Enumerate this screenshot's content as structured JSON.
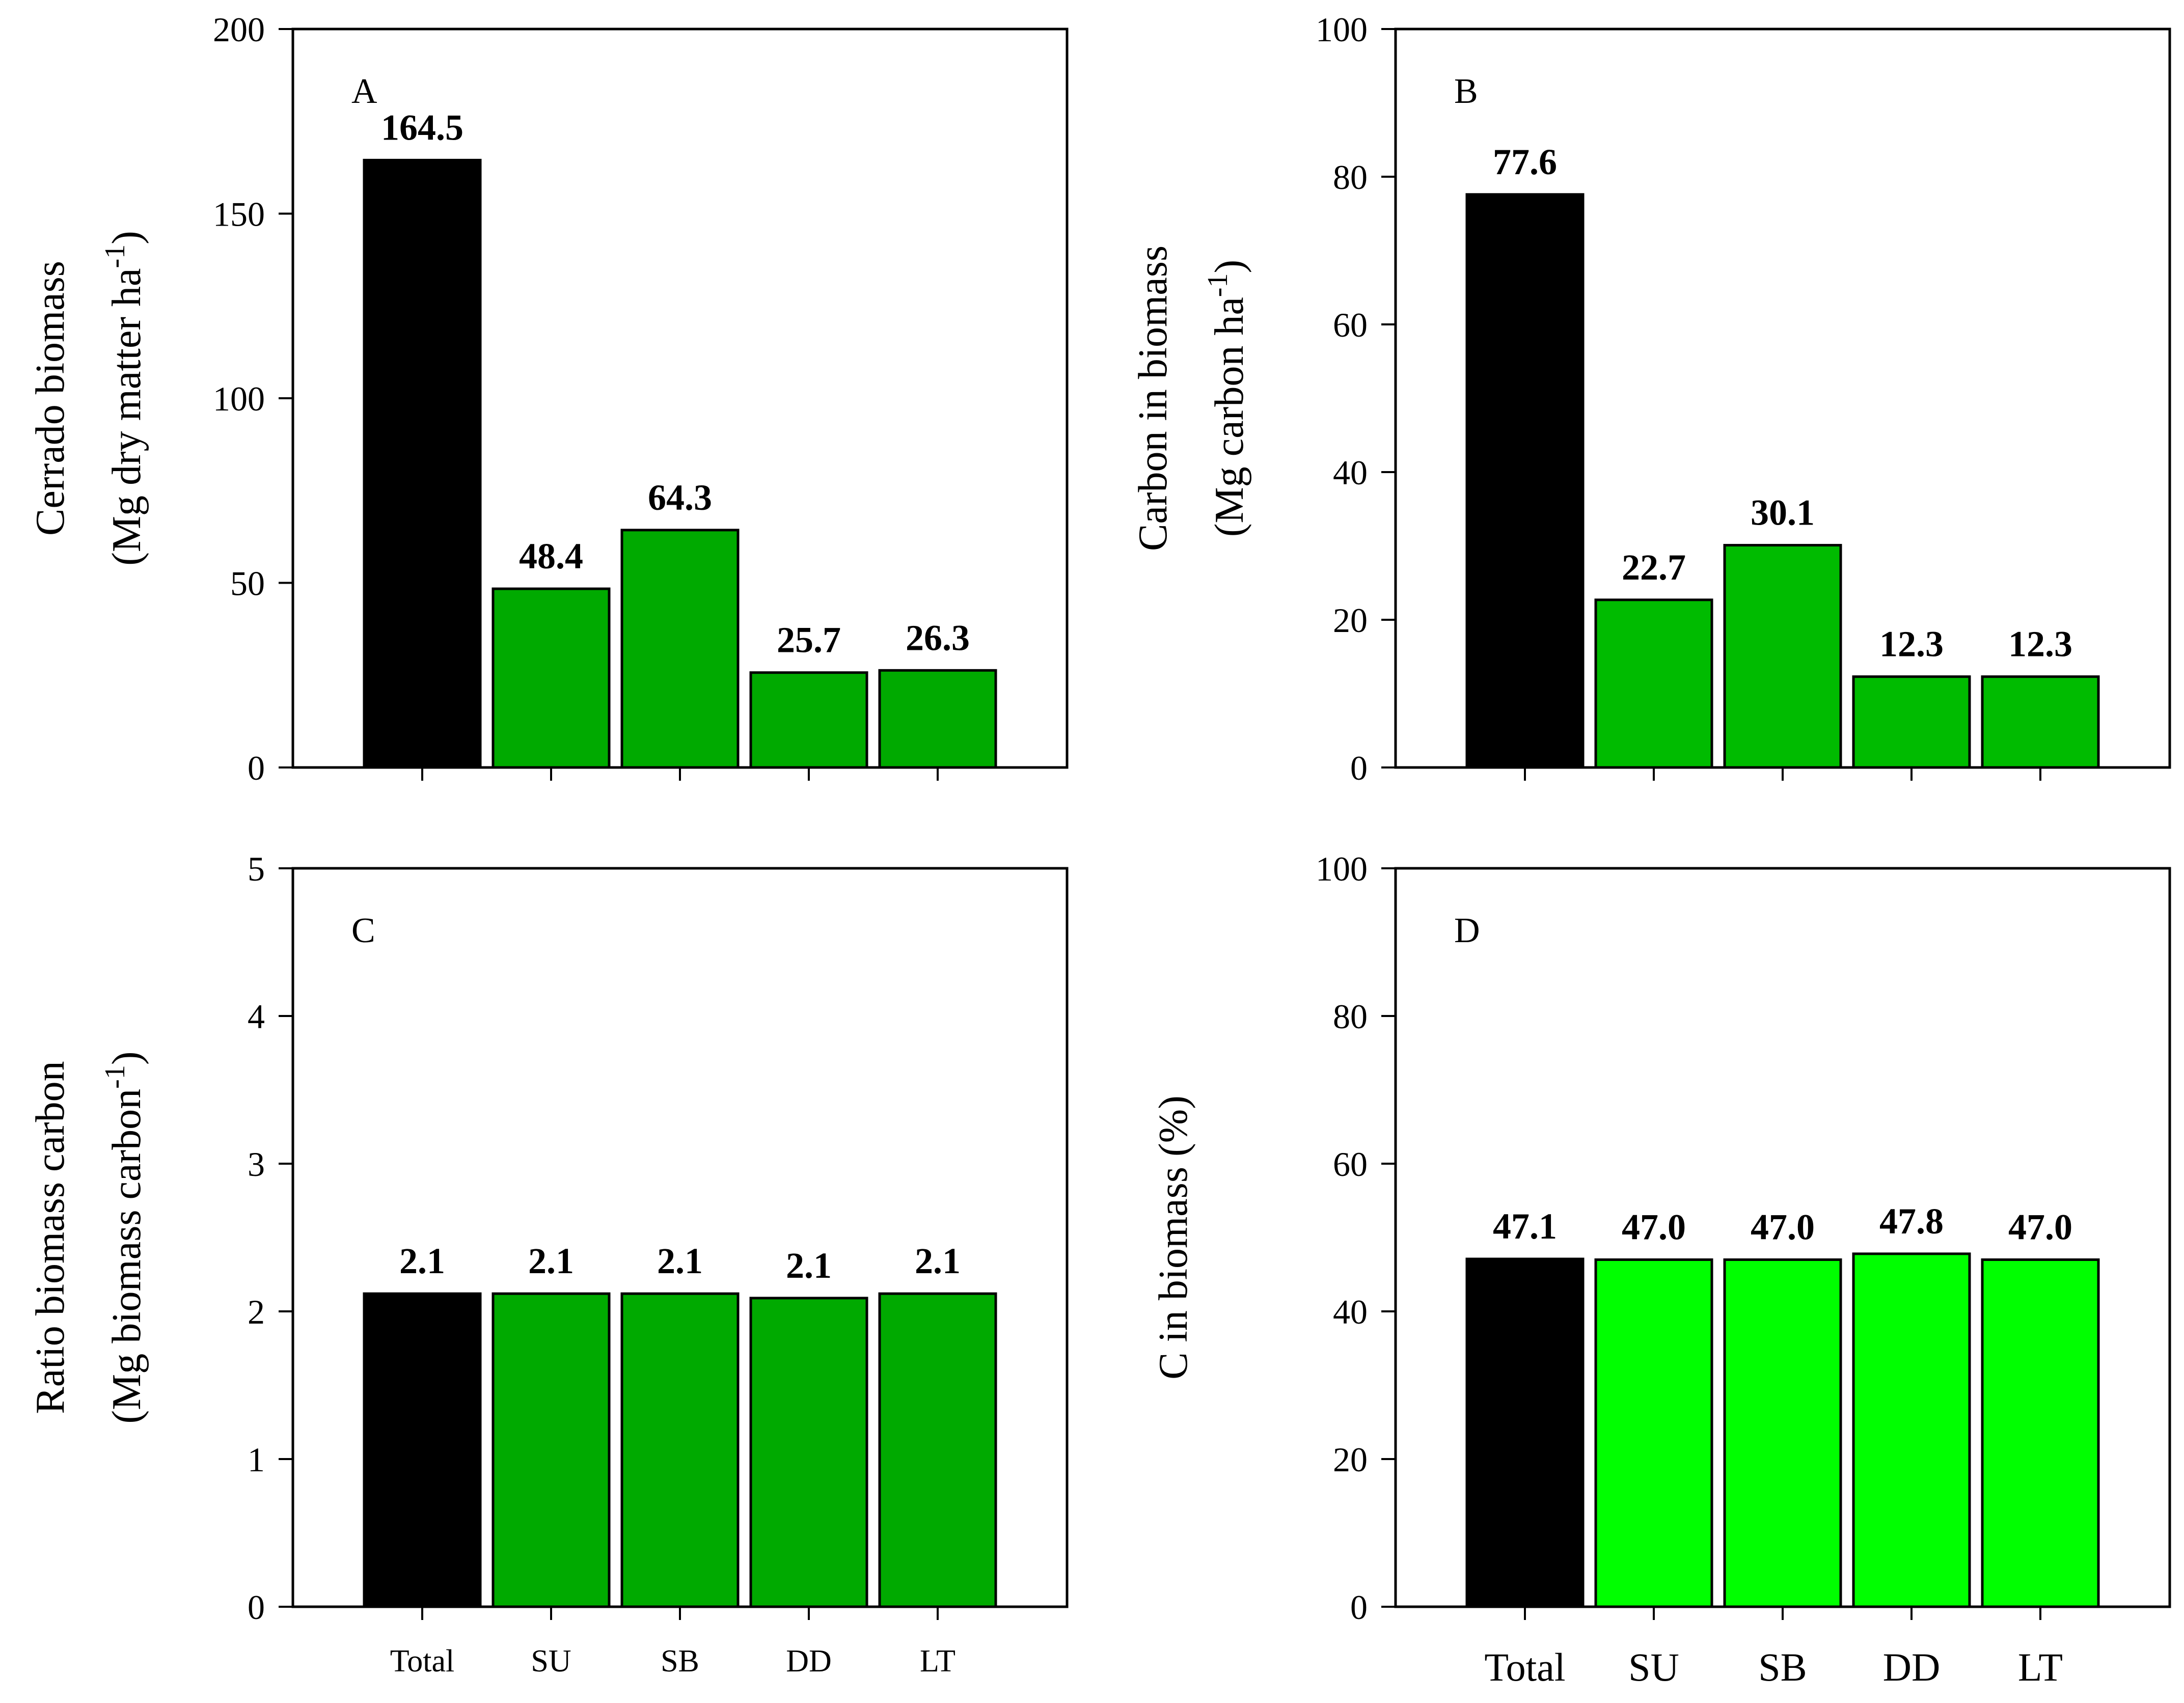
{
  "colors": {
    "total_bar": "#000000",
    "green_dark": "#00AA00",
    "green_mid": "#00BB00",
    "green_light": "#00FF00"
  },
  "chart_data": [
    {
      "type": "bar",
      "panel_letter": "A",
      "categories": [
        "Total",
        "SU",
        "SB",
        "DD",
        "LT"
      ],
      "values": [
        164.5,
        48.4,
        64.3,
        25.7,
        26.3
      ],
      "value_labels": [
        "164.5",
        "48.4",
        "64.3",
        "25.7",
        "26.3"
      ],
      "ylabel_line1": "Cerrado biomass",
      "ylabel_line2": "(Mg dry matter ha",
      "ylabel_sup": "-1",
      "ylabel_close": ")",
      "ylim": [
        0,
        200
      ],
      "yticks": [
        0,
        50,
        100,
        150,
        200
      ],
      "show_category_labels": false,
      "bar_colors": [
        "#000000",
        "#00AA00",
        "#00AA00",
        "#00AA00",
        "#00AA00"
      ]
    },
    {
      "type": "bar",
      "panel_letter": "B",
      "categories": [
        "Total",
        "SU",
        "SB",
        "DD",
        "LT"
      ],
      "values": [
        77.6,
        22.7,
        30.1,
        12.3,
        12.3
      ],
      "value_labels": [
        "77.6",
        "22.7",
        "30.1",
        "12.3",
        "12.3"
      ],
      "ylabel_line1": "Carbon in biomass",
      "ylabel_line2": "(Mg carbon ha",
      "ylabel_sup": "-1",
      "ylabel_close": ")",
      "ylim": [
        0,
        100
      ],
      "yticks": [
        0,
        20,
        40,
        60,
        80,
        100
      ],
      "show_category_labels": false,
      "bar_colors": [
        "#000000",
        "#00BB00",
        "#00BB00",
        "#00BB00",
        "#00BB00"
      ]
    },
    {
      "type": "bar",
      "panel_letter": "C",
      "categories": [
        "Total",
        "SU",
        "SB",
        "DD",
        "LT"
      ],
      "values": [
        2.12,
        2.12,
        2.12,
        2.09,
        2.12
      ],
      "value_labels": [
        "2.1",
        "2.1",
        "2.1",
        "2.1",
        "2.1"
      ],
      "ylabel_line1": "Ratio biomass carbon",
      "ylabel_line2": "(Mg biomass carbon",
      "ylabel_sup": "-1",
      "ylabel_close": ")",
      "ylim": [
        0,
        5
      ],
      "yticks": [
        0,
        1,
        2,
        3,
        4,
        5
      ],
      "show_category_labels": true,
      "bar_colors": [
        "#000000",
        "#00AA00",
        "#00AA00",
        "#00AA00",
        "#00AA00"
      ]
    },
    {
      "type": "bar",
      "panel_letter": "D",
      "categories": [
        "Total",
        "SU",
        "SB",
        "DD",
        "LT"
      ],
      "values": [
        47.1,
        47.0,
        47.0,
        47.8,
        47.0
      ],
      "value_labels": [
        "47.1",
        "47.0",
        "47.0",
        "47.8",
        "47.0"
      ],
      "ylabel_line1": "C in biomass (%)",
      "ylabel_line2": "",
      "ylabel_sup": "",
      "ylabel_close": "",
      "ylim": [
        0,
        100
      ],
      "yticks": [
        0,
        20,
        40,
        60,
        80,
        100
      ],
      "show_category_labels": true,
      "bar_colors": [
        "#000000",
        "#00FF00",
        "#00FF00",
        "#00FF00",
        "#00FF00"
      ]
    }
  ]
}
